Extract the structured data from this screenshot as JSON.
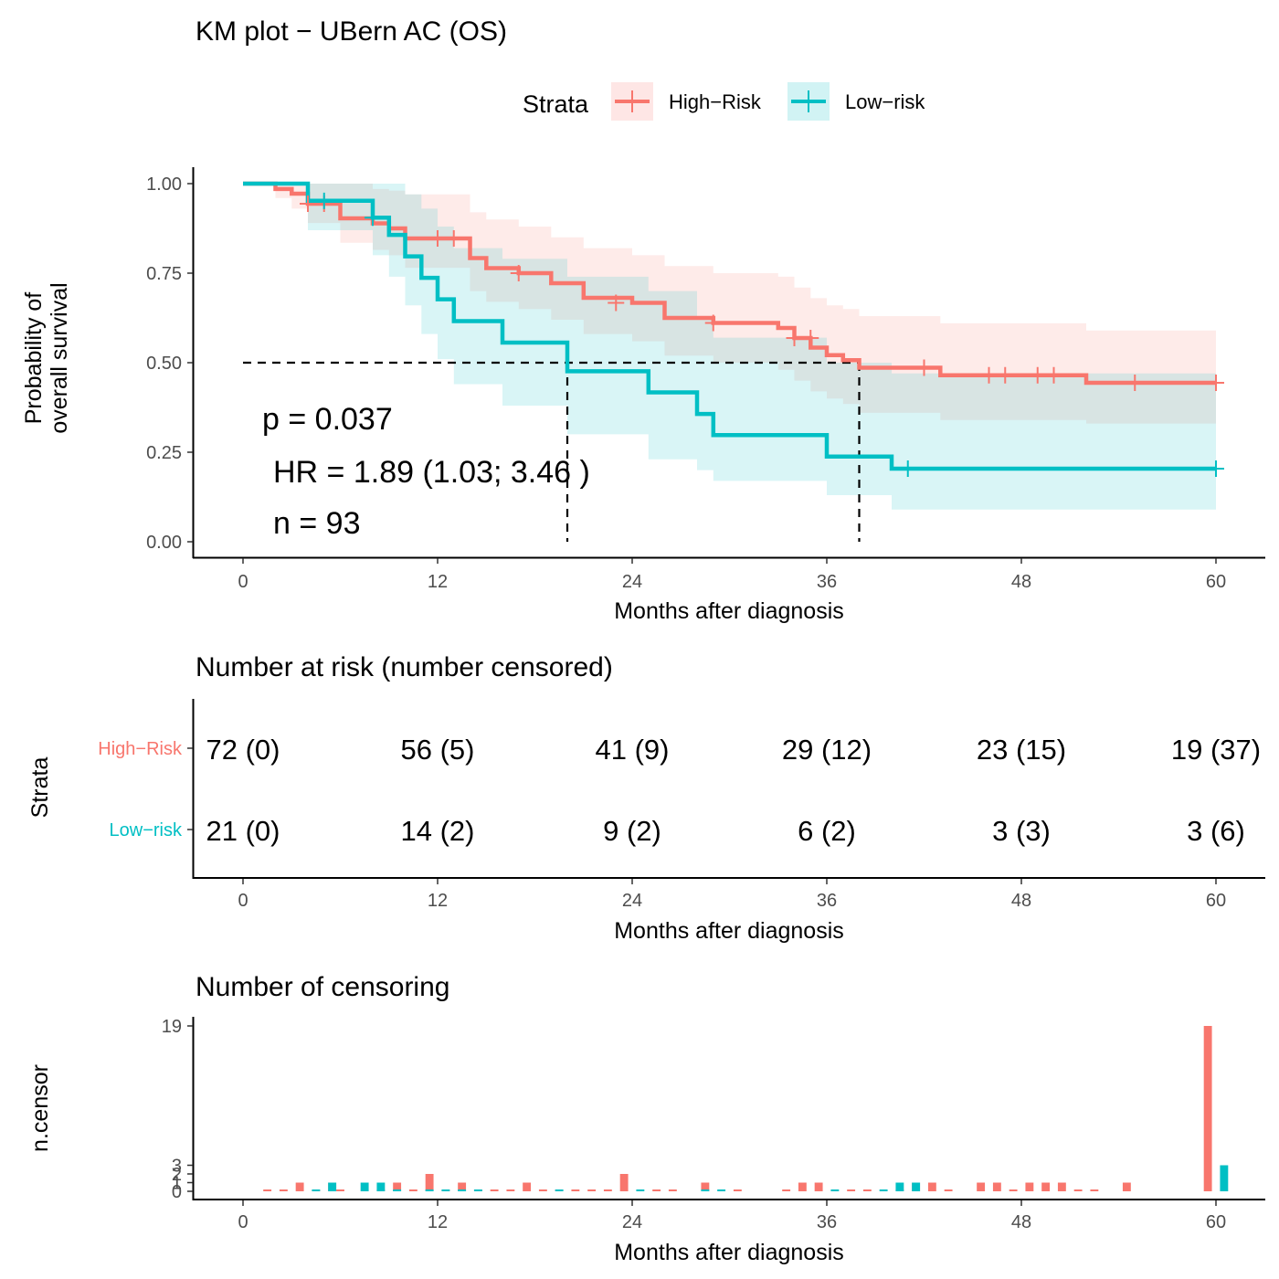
{
  "chart_data": [
    {
      "type": "line",
      "title": "KM plot − UBern AC (OS)",
      "xlabel": "Months after diagnosis",
      "ylabel_lines": [
        "Probability of",
        "overall survival"
      ],
      "xlim": [
        0,
        60
      ],
      "ylim": [
        0,
        1
      ],
      "x_ticks": [
        "0",
        "12",
        "24",
        "36",
        "48",
        "60"
      ],
      "x_tick_values": [
        0,
        12,
        24,
        36,
        48,
        60
      ],
      "y_ticks": [
        "0.00",
        "0.25",
        "0.50",
        "0.75",
        "1.00"
      ],
      "y_tick_values": [
        0,
        0.25,
        0.5,
        0.75,
        1
      ],
      "legend": {
        "title": "Strata",
        "position": "top",
        "entries": [
          "High−Risk",
          "Low−risk"
        ]
      },
      "annotations": [
        "p = 0.037",
        "HR = 1.89 (1.03; 3.46 )",
        "n = 93"
      ],
      "median_line": {
        "y": 0.5,
        "x_medians": [
          20,
          38
        ]
      },
      "series": [
        {
          "name": "High−Risk",
          "color": "#F8766D",
          "steps_x": [
            0,
            2,
            3,
            4,
            6,
            8,
            9,
            10,
            12,
            14,
            15,
            17,
            19,
            21,
            24,
            26,
            29,
            33,
            34,
            35,
            36,
            37,
            38,
            42,
            43,
            52,
            60
          ],
          "steps_y": [
            1.0,
            0.985,
            0.972,
            0.944,
            0.903,
            0.889,
            0.875,
            0.847,
            0.847,
            0.792,
            0.764,
            0.75,
            0.722,
            0.681,
            0.667,
            0.625,
            0.611,
            0.597,
            0.569,
            0.542,
            0.521,
            0.507,
            0.486,
            0.486,
            0.465,
            0.444,
            0.444
          ],
          "upper": [
            1.0,
            1.0,
            1.0,
            1.0,
            1.0,
            0.985,
            0.98,
            0.97,
            0.97,
            0.92,
            0.9,
            0.88,
            0.85,
            0.82,
            0.8,
            0.77,
            0.75,
            0.74,
            0.71,
            0.68,
            0.66,
            0.65,
            0.63,
            0.63,
            0.61,
            0.59,
            0.59
          ],
          "lower": [
            1.0,
            0.96,
            0.93,
            0.89,
            0.835,
            0.815,
            0.8,
            0.765,
            0.765,
            0.7,
            0.67,
            0.65,
            0.62,
            0.58,
            0.56,
            0.52,
            0.5,
            0.48,
            0.45,
            0.42,
            0.4,
            0.385,
            0.36,
            0.36,
            0.34,
            0.33,
            0.33
          ],
          "censor_x": [
            4,
            5,
            12,
            13,
            17,
            23,
            29,
            34,
            35,
            42,
            46,
            47,
            49,
            50,
            55,
            60
          ],
          "censor_y": [
            0.944,
            0.944,
            0.847,
            0.847,
            0.75,
            0.667,
            0.611,
            0.569,
            0.569,
            0.486,
            0.465,
            0.465,
            0.465,
            0.465,
            0.444,
            0.444
          ]
        },
        {
          "name": "Low−risk",
          "color": "#00BFC4",
          "steps_x": [
            0,
            4,
            8,
            9,
            10,
            11,
            12,
            13,
            16,
            20,
            25,
            28,
            29,
            36,
            40,
            60
          ],
          "steps_y": [
            1.0,
            0.952,
            0.905,
            0.857,
            0.797,
            0.737,
            0.677,
            0.616,
            0.556,
            0.476,
            0.417,
            0.357,
            0.298,
            0.238,
            0.204,
            0.204
          ],
          "upper": [
            1.0,
            1.0,
            1.0,
            1.0,
            0.97,
            0.93,
            0.88,
            0.82,
            0.79,
            0.74,
            0.7,
            0.63,
            0.57,
            0.5,
            0.47,
            0.47
          ],
          "lower": [
            1.0,
            0.87,
            0.8,
            0.74,
            0.66,
            0.58,
            0.51,
            0.44,
            0.38,
            0.3,
            0.23,
            0.2,
            0.17,
            0.13,
            0.09,
            0.09
          ],
          "censor_x": [
            5,
            8,
            41,
            60
          ],
          "censor_y": [
            0.952,
            0.905,
            0.204,
            0.204
          ]
        }
      ]
    },
    {
      "type": "table",
      "title": "Number at risk (number censored)",
      "xlabel": "Months after diagnosis",
      "ylabel": "Strata",
      "x_ticks": [
        "0",
        "12",
        "24",
        "36",
        "48",
        "60"
      ],
      "x_tick_values": [
        0,
        12,
        24,
        36,
        48,
        60
      ],
      "rows": [
        {
          "name": "High−Risk",
          "color": "#F8766D",
          "values": [
            "72 (0)",
            "56 (5)",
            "41 (9)",
            "29 (12)",
            "23 (15)",
            "19 (37)"
          ]
        },
        {
          "name": "Low−risk",
          "color": "#00BFC4",
          "values": [
            "21 (0)",
            "14 (2)",
            "9 (2)",
            "6 (2)",
            "3 (3)",
            "3 (6)"
          ]
        }
      ]
    },
    {
      "type": "bar",
      "title": "Number of censoring",
      "xlabel": "Months after diagnosis",
      "ylabel": "n.censor",
      "xlim": [
        0,
        60
      ],
      "x_ticks": [
        "0",
        "12",
        "24",
        "36",
        "48",
        "60"
      ],
      "x_tick_values": [
        0,
        12,
        24,
        36,
        48,
        60
      ],
      "y_ticks": [
        "0",
        "1",
        "2",
        "3",
        "19"
      ],
      "y_tick_values": [
        0,
        1,
        2,
        3,
        19
      ],
      "series": [
        {
          "name": "High−Risk",
          "color": "#F8766D",
          "x": [
            1.5,
            2.5,
            3.5,
            4.5,
            5.5,
            6,
            8.5,
            9.5,
            10.5,
            11.5,
            12.5,
            13.5,
            14.5,
            15.5,
            16.5,
            17.5,
            18.5,
            19.5,
            20.5,
            21.5,
            22.5,
            23.5,
            25.5,
            26.5,
            28.5,
            30.5,
            33.5,
            34.5,
            35.5,
            37.5,
            38.5,
            40.5,
            41.5,
            42.5,
            43.5,
            45.5,
            46.5,
            47.5,
            48.5,
            49.5,
            50.5,
            51.5,
            52.5,
            54.5,
            59.5
          ],
          "values": [
            0,
            0,
            1,
            0,
            1,
            0,
            0,
            1,
            0,
            2,
            0,
            1,
            0,
            0,
            0,
            1,
            0,
            0,
            0,
            0,
            0,
            2,
            0,
            0,
            1,
            0,
            0,
            1,
            1,
            0,
            0,
            0,
            1,
            1,
            0,
            1,
            1,
            0,
            1,
            1,
            1,
            0,
            0,
            1,
            19
          ]
        },
        {
          "name": "Low−risk",
          "color": "#00BFC4",
          "x": [
            4.5,
            5.5,
            7.5,
            8.5,
            9.5,
            11.5,
            12.5,
            13.5,
            14.5,
            19.5,
            24.5,
            28.5,
            29.5,
            36.5,
            39.5,
            40.5,
            41.5,
            60.5
          ],
          "values": [
            0,
            1,
            1,
            1,
            0,
            0,
            0,
            0,
            0,
            0,
            0,
            0,
            0,
            0,
            0,
            1,
            1,
            3
          ]
        }
      ]
    }
  ]
}
